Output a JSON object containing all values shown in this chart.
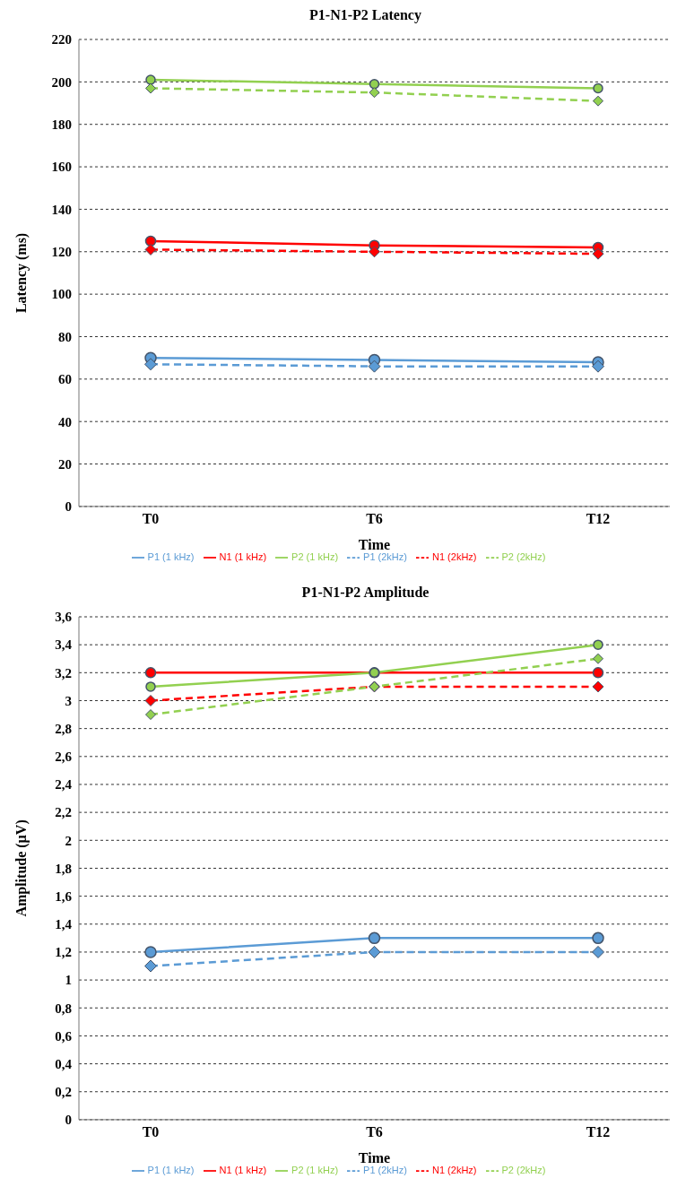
{
  "chart_data": [
    {
      "type": "line",
      "title": "P1-N1-P2 Latency",
      "xlabel": "Time",
      "ylabel": "Latency (ms)",
      "categories": [
        "T0",
        "T6",
        "T12"
      ],
      "ylim": [
        0,
        220
      ],
      "yticks": [
        0,
        20,
        40,
        60,
        80,
        100,
        120,
        140,
        160,
        180,
        200,
        220
      ],
      "grid": "y",
      "legend": "bottom",
      "series": [
        {
          "name": "P1 (1 kHz)",
          "color": "#5b9bd5",
          "values": [
            70,
            69,
            68
          ],
          "line_style": "solid",
          "marker": "circle"
        },
        {
          "name": "N1 (1 kHz)",
          "color": "#ff0000",
          "values": [
            125,
            123,
            122
          ],
          "line_style": "solid",
          "marker": "circle"
        },
        {
          "name": "P2 (1 kHz)",
          "color": "#92d050",
          "values": [
            201,
            199,
            197
          ],
          "line_style": "solid",
          "marker": "circle"
        },
        {
          "name": "P1 (2kHz)",
          "color": "#5b9bd5",
          "values": [
            67,
            66,
            66
          ],
          "line_style": "dashed",
          "marker": "diamond"
        },
        {
          "name": "N1 (2kHz)",
          "color": "#ff0000",
          "values": [
            121,
            120,
            119
          ],
          "line_style": "dashed",
          "marker": "diamond"
        },
        {
          "name": "P2 (2kHz)",
          "color": "#92d050",
          "values": [
            197,
            195,
            191
          ],
          "line_style": "dashed",
          "marker": "diamond"
        }
      ]
    },
    {
      "type": "line",
      "title": "P1-N1-P2 Amplitude",
      "xlabel": "Time",
      "ylabel": "Amplitude (µV)",
      "categories": [
        "T0",
        "T6",
        "T12"
      ],
      "ylim": [
        0,
        3.6
      ],
      "yticks": [
        0,
        {
          "value": 0.2,
          "label": "0,2"
        },
        {
          "value": 0.4,
          "label": "0,4"
        },
        {
          "value": 0.6,
          "label": "0,6"
        },
        {
          "value": 0.8,
          "label": "0,8"
        },
        1,
        {
          "value": 1.2,
          "label": "1,2"
        },
        {
          "value": 1.4,
          "label": "1,4"
        },
        {
          "value": 1.6,
          "label": "1,6"
        },
        {
          "value": 1.8,
          "label": "1,8"
        },
        2,
        {
          "value": 2.2,
          "label": "2,2"
        },
        {
          "value": 2.4,
          "label": "2,4"
        },
        {
          "value": 2.6,
          "label": "2,6"
        },
        {
          "value": 2.8,
          "label": "2,8"
        },
        3,
        {
          "value": 3.2,
          "label": "3,2"
        },
        {
          "value": 3.4,
          "label": "3,4"
        },
        {
          "value": 3.6,
          "label": "3,6"
        }
      ],
      "grid": "y",
      "legend": "bottom",
      "series": [
        {
          "name": "P1 (1 kHz)",
          "color": "#5b9bd5",
          "values": [
            1.2,
            1.3,
            1.3
          ],
          "line_style": "solid",
          "marker": "circle"
        },
        {
          "name": "N1 (1 kHz)",
          "color": "#ff0000",
          "values": [
            3.2,
            3.2,
            3.2
          ],
          "line_style": "solid",
          "marker": "circle"
        },
        {
          "name": "P2 (1 kHz)",
          "color": "#92d050",
          "values": [
            3.1,
            3.2,
            3.4
          ],
          "line_style": "solid",
          "marker": "circle"
        },
        {
          "name": "P1 (2kHz)",
          "color": "#5b9bd5",
          "values": [
            1.1,
            1.2,
            1.2
          ],
          "line_style": "dashed",
          "marker": "diamond"
        },
        {
          "name": "N1 (2kHz)",
          "color": "#ff0000",
          "values": [
            3.0,
            3.1,
            3.1
          ],
          "line_style": "dashed",
          "marker": "diamond"
        },
        {
          "name": "P2 (2kHz)",
          "color": "#92d050",
          "values": [
            2.9,
            3.1,
            3.3
          ],
          "line_style": "dashed",
          "marker": "diamond"
        }
      ]
    }
  ]
}
